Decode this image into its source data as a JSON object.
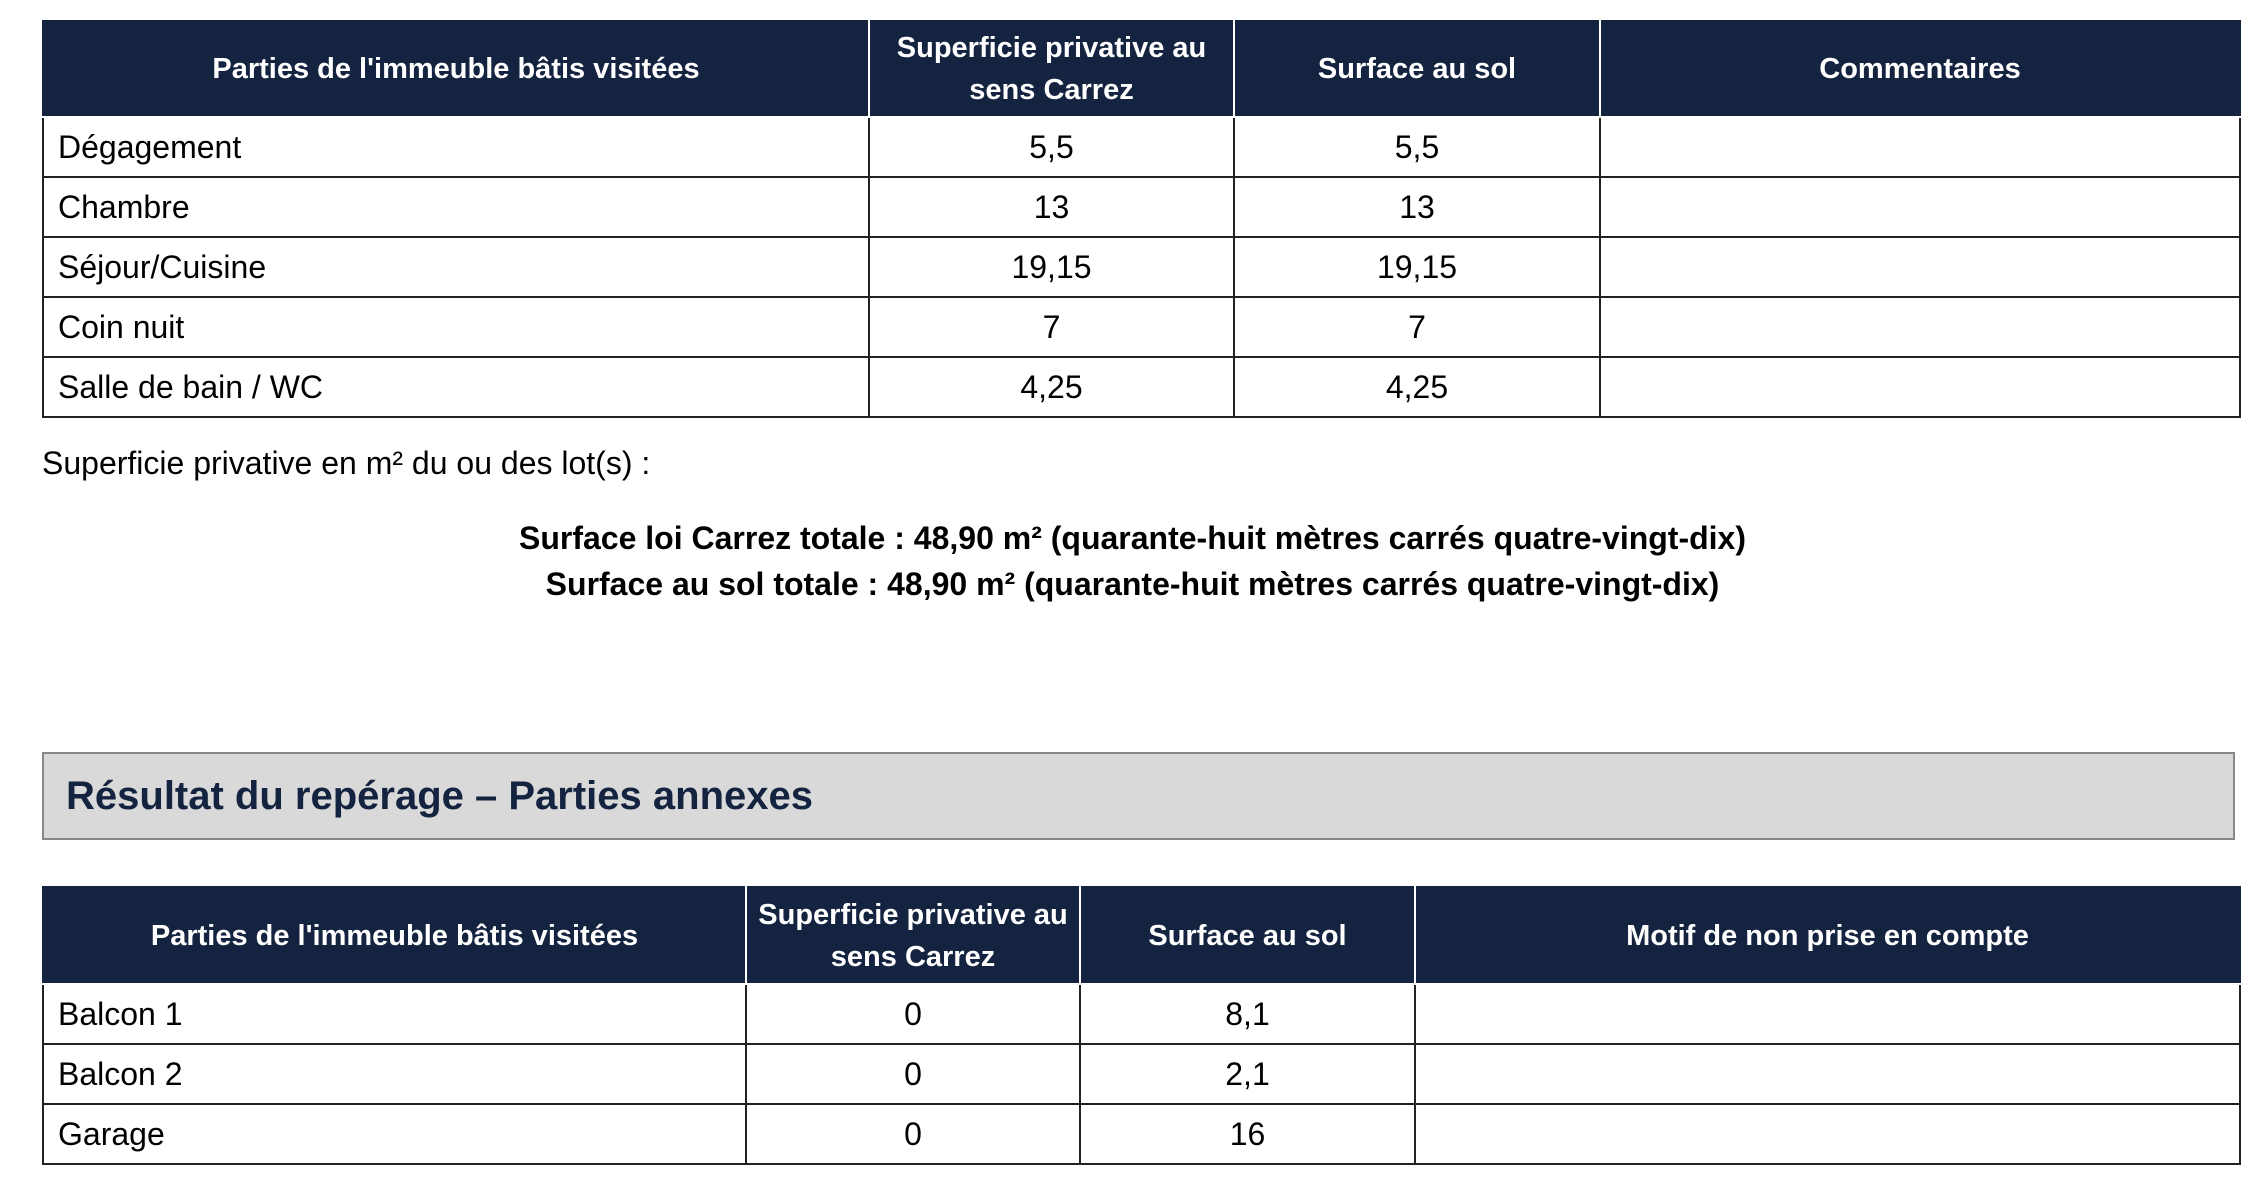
{
  "table1": {
    "headers": [
      "Parties de l'immeuble bâtis visitées",
      "Superficie privative au sens Carrez",
      "Surface au sol",
      "Commentaires"
    ],
    "rows": [
      [
        "Dégagement",
        "5,5",
        "5,5"
      ],
      [
        "Chambre",
        "13",
        "13"
      ],
      [
        "Séjour/Cuisine",
        "19,15",
        "19,15"
      ],
      [
        "Coin nuit",
        "7",
        "7"
      ],
      [
        "Salle de bain / WC",
        "4,25",
        "4,25"
      ]
    ]
  },
  "summary": {
    "intro": "Superficie privative en m² du ou des lot(s) :",
    "lines": [
      "Surface loi Carrez totale : 48,90 m² (quarante-huit mètres carrés quatre-vingt-dix)",
      "Surface au sol totale : 48,90 m² (quarante-huit mètres carrés quatre-vingt-dix)"
    ]
  },
  "section_title": "Résultat du repérage – Parties annexes",
  "table2": {
    "headers": [
      "Parties de l'immeuble bâtis visitées",
      "Superficie privative au sens Carrez",
      "Surface au sol",
      "Motif de non prise en compte"
    ],
    "rows": [
      [
        "Balcon 1",
        "0",
        "8,1"
      ],
      [
        "Balcon 2",
        "0",
        "2,1"
      ],
      [
        "Garage",
        "0",
        "16"
      ]
    ]
  }
}
